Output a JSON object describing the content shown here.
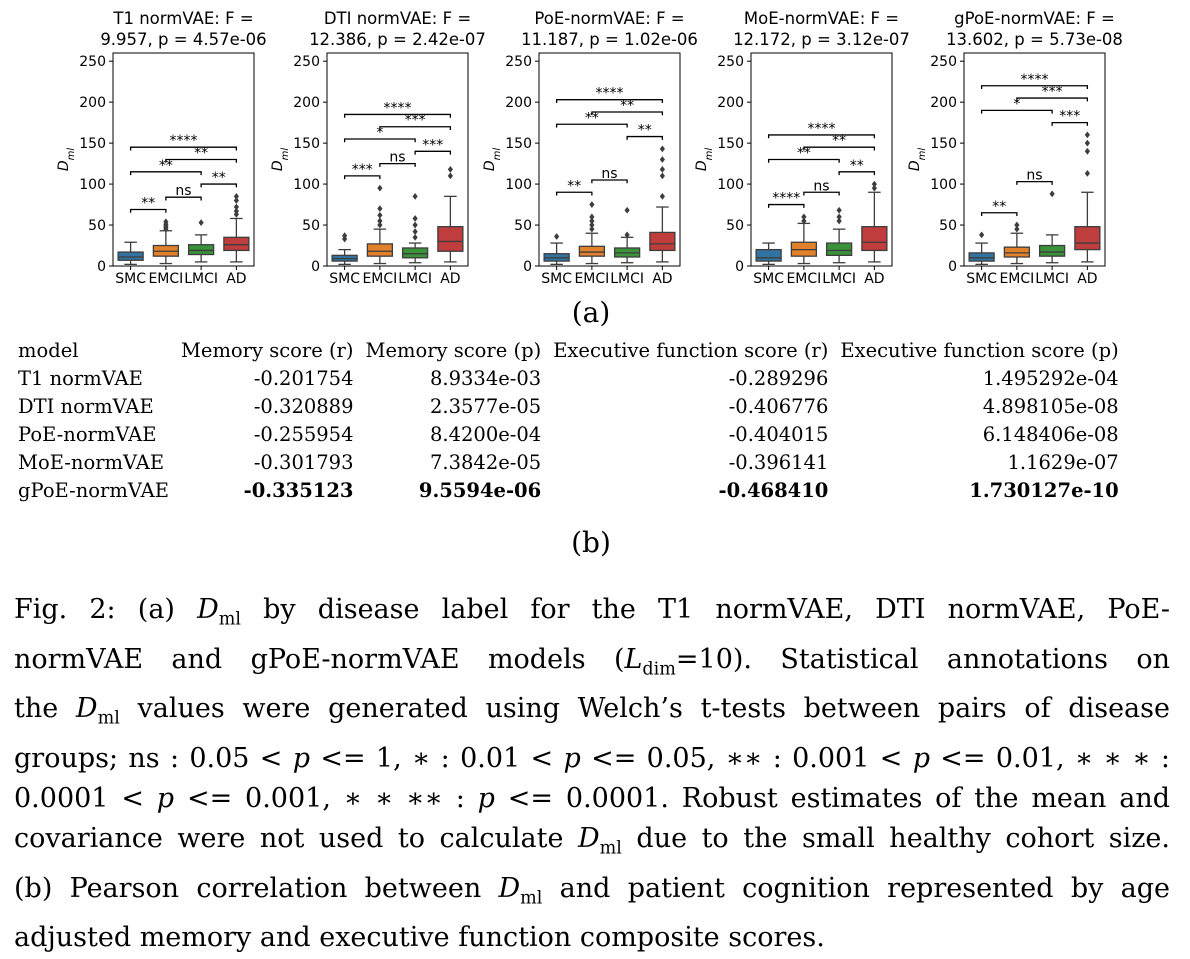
{
  "figure_a": {
    "label": "(a)",
    "ylabel_main": "D",
    "ylabel_sub": "ml",
    "y_ticks": [
      "0",
      "50",
      "100",
      "150",
      "200",
      "250"
    ],
    "group_labels": [
      "SMC",
      "EMCI",
      "LMCI",
      "AD"
    ],
    "group_colors": [
      "#3274a1",
      "#e1812c",
      "#3a923a",
      "#c03d3e"
    ],
    "panels": [
      {
        "title_line1": "T1 normVAE: F =",
        "title_line2": "9.957, p = 4.57e-06"
      },
      {
        "title_line1": "DTI normVAE: F =",
        "title_line2": "12.386, p = 2.42e-07"
      },
      {
        "title_line1": "PoE-normVAE: F =",
        "title_line2": "11.187, p = 1.02e-06"
      },
      {
        "title_line1": "MoE-normVAE: F =",
        "title_line2": "12.172, p = 3.12e-07"
      },
      {
        "title_line1": "gPoE-normVAE: F =",
        "title_line2": "13.602, p = 5.73e-08"
      }
    ]
  },
  "chart_data": [
    {
      "type": "box",
      "title": "T1 normVAE: F = 9.957, p = 4.57e-06",
      "categories": [
        "SMC",
        "EMCI",
        "LMCI",
        "AD"
      ],
      "ylabel": "D_ml",
      "ylim": [
        0,
        260
      ],
      "boxes": [
        {
          "whisker_low": 2,
          "q1": 7,
          "median": 11,
          "q3": 17,
          "whisker_high": 29,
          "outliers": []
        },
        {
          "whisker_low": 3,
          "q1": 12,
          "median": 18,
          "q3": 25,
          "whisker_high": 43,
          "outliers": [
            45,
            47,
            49,
            51,
            54
          ]
        },
        {
          "whisker_low": 5,
          "q1": 14,
          "median": 19,
          "q3": 26,
          "whisker_high": 38,
          "outliers": [
            53
          ]
        },
        {
          "whisker_low": 5,
          "q1": 19,
          "median": 26,
          "q3": 35,
          "whisker_high": 58,
          "outliers": [
            63,
            67,
            72,
            80,
            85
          ]
        }
      ],
      "annotations": [
        {
          "a": "SMC",
          "b": "EMCI",
          "text": "**"
        },
        {
          "a": "EMCI",
          "b": "LMCI",
          "text": "ns"
        },
        {
          "a": "LMCI",
          "b": "AD",
          "text": "**"
        },
        {
          "a": "SMC",
          "b": "LMCI",
          "text": "**"
        },
        {
          "a": "EMCI",
          "b": "AD",
          "text": "**"
        },
        {
          "a": "SMC",
          "b": "AD",
          "text": "****"
        }
      ]
    },
    {
      "type": "box",
      "title": "DTI normVAE: F = 12.386, p = 2.42e-07",
      "categories": [
        "SMC",
        "EMCI",
        "LMCI",
        "AD"
      ],
      "ylabel": "D_ml",
      "ylim": [
        0,
        260
      ],
      "boxes": [
        {
          "whisker_low": 2,
          "q1": 6,
          "median": 9,
          "q3": 13,
          "whisker_high": 20,
          "outliers": [
            33,
            37
          ]
        },
        {
          "whisker_low": 3,
          "q1": 12,
          "median": 18,
          "q3": 27,
          "whisker_high": 45,
          "outliers": [
            50,
            55,
            62,
            70,
            95
          ]
        },
        {
          "whisker_low": 4,
          "q1": 10,
          "median": 15,
          "q3": 22,
          "whisker_high": 28,
          "outliers": [
            35,
            42,
            50,
            58,
            85
          ]
        },
        {
          "whisker_low": 5,
          "q1": 18,
          "median": 30,
          "q3": 48,
          "whisker_high": 85,
          "outliers": [
            110,
            118
          ]
        }
      ],
      "annotations": [
        {
          "a": "SMC",
          "b": "EMCI",
          "text": "***"
        },
        {
          "a": "EMCI",
          "b": "LMCI",
          "text": "ns"
        },
        {
          "a": "LMCI",
          "b": "AD",
          "text": "***"
        },
        {
          "a": "SMC",
          "b": "LMCI",
          "text": "*"
        },
        {
          "a": "EMCI",
          "b": "AD",
          "text": "***"
        },
        {
          "a": "SMC",
          "b": "AD",
          "text": "****"
        }
      ]
    },
    {
      "type": "box",
      "title": "PoE-normVAE: F = 11.187, p = 1.02e-06",
      "categories": [
        "SMC",
        "EMCI",
        "LMCI",
        "AD"
      ],
      "ylabel": "D_ml",
      "ylim": [
        0,
        260
      ],
      "boxes": [
        {
          "whisker_low": 2,
          "q1": 6,
          "median": 10,
          "q3": 15,
          "whisker_high": 28,
          "outliers": [
            36
          ]
        },
        {
          "whisker_low": 3,
          "q1": 12,
          "median": 17,
          "q3": 24,
          "whisker_high": 40,
          "outliers": [
            45,
            50,
            55,
            60,
            75
          ]
        },
        {
          "whisker_low": 4,
          "q1": 11,
          "median": 16,
          "q3": 22,
          "whisker_high": 35,
          "outliers": [
            38,
            68
          ]
        },
        {
          "whisker_low": 5,
          "q1": 19,
          "median": 27,
          "q3": 41,
          "whisker_high": 72,
          "outliers": [
            85,
            110,
            118,
            130,
            143
          ]
        }
      ],
      "annotations": [
        {
          "a": "SMC",
          "b": "EMCI",
          "text": "**"
        },
        {
          "a": "EMCI",
          "b": "LMCI",
          "text": "ns"
        },
        {
          "a": "LMCI",
          "b": "AD",
          "text": "**"
        },
        {
          "a": "SMC",
          "b": "LMCI",
          "text": "**"
        },
        {
          "a": "EMCI",
          "b": "AD",
          "text": "**"
        },
        {
          "a": "SMC",
          "b": "AD",
          "text": "****"
        }
      ]
    },
    {
      "type": "box",
      "title": "MoE-normVAE: F = 12.172, p = 3.12e-07",
      "categories": [
        "SMC",
        "EMCI",
        "LMCI",
        "AD"
      ],
      "ylabel": "D_ml",
      "ylim": [
        0,
        260
      ],
      "boxes": [
        {
          "whisker_low": 2,
          "q1": 6,
          "median": 10,
          "q3": 20,
          "whisker_high": 28,
          "outliers": []
        },
        {
          "whisker_low": 3,
          "q1": 12,
          "median": 20,
          "q3": 29,
          "whisker_high": 52,
          "outliers": [
            55,
            60
          ]
        },
        {
          "whisker_low": 4,
          "q1": 13,
          "median": 19,
          "q3": 28,
          "whisker_high": 45,
          "outliers": [
            55,
            60,
            68
          ]
        },
        {
          "whisker_low": 5,
          "q1": 19,
          "median": 29,
          "q3": 48,
          "whisker_high": 90,
          "outliers": [
            95,
            100
          ]
        }
      ],
      "annotations": [
        {
          "a": "SMC",
          "b": "EMCI",
          "text": "****"
        },
        {
          "a": "EMCI",
          "b": "LMCI",
          "text": "ns"
        },
        {
          "a": "LMCI",
          "b": "AD",
          "text": "**"
        },
        {
          "a": "SMC",
          "b": "LMCI",
          "text": "**"
        },
        {
          "a": "EMCI",
          "b": "AD",
          "text": "**"
        },
        {
          "a": "SMC",
          "b": "AD",
          "text": "****"
        }
      ]
    },
    {
      "type": "box",
      "title": "gPoE-normVAE: F = 13.602, p = 5.73e-08",
      "categories": [
        "SMC",
        "EMCI",
        "LMCI",
        "AD"
      ],
      "ylabel": "D_ml",
      "ylim": [
        0,
        260
      ],
      "boxes": [
        {
          "whisker_low": 2,
          "q1": 6,
          "median": 10,
          "q3": 16,
          "whisker_high": 28,
          "outliers": [
            38
          ]
        },
        {
          "whisker_low": 3,
          "q1": 11,
          "median": 16,
          "q3": 23,
          "whisker_high": 40,
          "outliers": [
            45,
            50
          ]
        },
        {
          "whisker_low": 4,
          "q1": 12,
          "median": 17,
          "q3": 25,
          "whisker_high": 38,
          "outliers": [
            88
          ]
        },
        {
          "whisker_low": 5,
          "q1": 20,
          "median": 28,
          "q3": 48,
          "whisker_high": 90,
          "outliers": [
            113,
            140,
            150,
            160
          ]
        }
      ],
      "annotations": [
        {
          "a": "SMC",
          "b": "EMCI",
          "text": "**"
        },
        {
          "a": "EMCI",
          "b": "LMCI",
          "text": "ns"
        },
        {
          "a": "LMCI",
          "b": "AD",
          "text": "***"
        },
        {
          "a": "SMC",
          "b": "LMCI",
          "text": "*"
        },
        {
          "a": "EMCI",
          "b": "AD",
          "text": "***"
        },
        {
          "a": "SMC",
          "b": "AD",
          "text": "****"
        }
      ]
    }
  ],
  "table_b": {
    "label": "(b)",
    "headers": [
      "model",
      "Memory score (r)",
      "Memory score (p)",
      "Executive function score (r)",
      "Executive function score (p)"
    ],
    "rows": [
      [
        "T1 normVAE",
        "-0.201754",
        "8.9334e-03",
        "-0.289296",
        "1.495292e-04"
      ],
      [
        "DTI normVAE",
        "-0.320889",
        "2.3577e-05",
        "-0.406776",
        "4.898105e-08"
      ],
      [
        "PoE-normVAE",
        "-0.255954",
        "8.4200e-04",
        "-0.404015",
        "6.148406e-08"
      ],
      [
        "MoE-normVAE",
        "-0.301793",
        "7.3842e-05",
        "-0.396141",
        "1.1629e-07"
      ],
      [
        "gPoE-normVAE",
        "-0.335123",
        "9.5594e-06",
        "-0.468410",
        "1.730127e-10"
      ]
    ]
  },
  "caption": {
    "l1a": "Fig. 2: (a) ",
    "l1b": "D",
    "l1c": "ml",
    "l1d": " by disease label for the T1 normVAE, DTI normVAE, PoE-",
    "l2a": "normVAE and gPoE-normVAE models (",
    "l2b": "L",
    "l2c": "dim",
    "l2d": "=10). Statistical annotations on",
    "l3a": "the ",
    "l3b": "D",
    "l3c": "ml",
    "l3d": " values were generated using Welch’s t-tests between pairs of disease",
    "l4a": "groups; ns : 0.05 < ",
    "l4b": "p",
    "l4c": " <= 1, ∗ : 0.01 < ",
    "l4d": "p",
    "l4e": " <= 0.05, ∗∗ : 0.001 < ",
    "l4f": "p",
    "l4g": " <= 0.01, ∗ ∗ ∗ :",
    "l5a": "0.0001 < ",
    "l5b": "p",
    "l5c": " <= 0.001, ∗ ∗ ∗∗ : ",
    "l5d": "p",
    "l5e": " <= 0.0001. Robust estimates of the mean and",
    "l6a": "covariance were not used to calculate ",
    "l6b": "D",
    "l6c": "ml",
    "l6d": " due to the small healthy cohort size.",
    "l7a": "(b) Pearson correlation between ",
    "l7b": "D",
    "l7c": "ml",
    "l7d": " and patient cognition represented by age",
    "l8a": "adjusted memory and executive function composite scores."
  }
}
